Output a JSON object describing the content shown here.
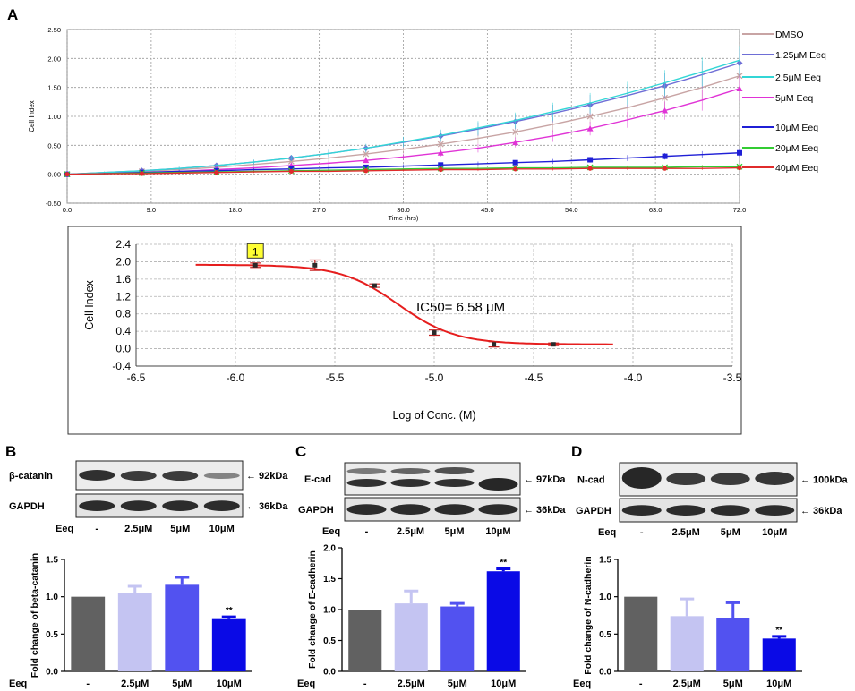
{
  "panels": {
    "a": {
      "letter": "A"
    },
    "b": {
      "letter": "B"
    },
    "c": {
      "letter": "C"
    },
    "d": {
      "letter": "D"
    }
  },
  "chart_data": [
    {
      "id": "realtime",
      "type": "line",
      "title": "",
      "xlabel": "Time (hrs)",
      "ylabel": "Cell Index",
      "xlim": [
        0,
        72
      ],
      "ylim": [
        -0.5,
        2.5
      ],
      "x_ticks": [
        "0.0",
        "9.0",
        "18.0",
        "27.0",
        "36.0",
        "45.0",
        "54.0",
        "63.0",
        "72.0"
      ],
      "y_ticks": [
        "2.50",
        "2.00",
        "1.50",
        "1.00",
        "0.50",
        "0.00",
        "-0.50"
      ],
      "x": [
        0,
        4,
        8,
        12,
        16,
        20,
        24,
        28,
        32,
        36,
        40,
        44,
        48,
        52,
        56,
        60,
        64,
        68,
        72
      ],
      "series": [
        {
          "name": "DMSO",
          "color": "#c8a4a4",
          "marker": "x",
          "values": [
            0,
            0.02,
            0.05,
            0.08,
            0.12,
            0.17,
            0.22,
            0.28,
            0.35,
            0.43,
            0.52,
            0.62,
            0.73,
            0.86,
            1.0,
            1.15,
            1.32,
            1.5,
            1.7
          ]
        },
        {
          "name": "1.25μM Eeq",
          "color": "#6e6ed6",
          "marker": "diamond",
          "values": [
            0,
            0.03,
            0.06,
            0.1,
            0.15,
            0.21,
            0.28,
            0.36,
            0.45,
            0.55,
            0.66,
            0.78,
            0.91,
            1.05,
            1.2,
            1.36,
            1.53,
            1.72,
            1.92
          ]
        },
        {
          "name": "2.5μM Eeq",
          "color": "#33d6d6",
          "marker": "none",
          "values": [
            0,
            0.03,
            0.06,
            0.1,
            0.15,
            0.21,
            0.28,
            0.36,
            0.45,
            0.56,
            0.67,
            0.8,
            0.93,
            1.08,
            1.23,
            1.4,
            1.58,
            1.77,
            1.97
          ]
        },
        {
          "name": "5μM Eeq",
          "color": "#e033d6",
          "marker": "triangle",
          "values": [
            0,
            0.01,
            0.03,
            0.05,
            0.08,
            0.11,
            0.15,
            0.19,
            0.24,
            0.3,
            0.37,
            0.45,
            0.55,
            0.66,
            0.79,
            0.94,
            1.1,
            1.28,
            1.48
          ]
        },
        {
          "name": "10μM Eeq",
          "color": "#1f1fd6",
          "marker": "square",
          "values": [
            0,
            0.01,
            0.03,
            0.05,
            0.06,
            0.08,
            0.09,
            0.11,
            0.12,
            0.14,
            0.16,
            0.18,
            0.2,
            0.22,
            0.25,
            0.28,
            0.31,
            0.34,
            0.37
          ]
        },
        {
          "name": "20μM Eeq",
          "color": "#33cc33",
          "marker": "x",
          "values": [
            0,
            0.01,
            0.02,
            0.03,
            0.04,
            0.05,
            0.06,
            0.07,
            0.08,
            0.09,
            0.1,
            0.1,
            0.11,
            0.11,
            0.12,
            0.12,
            0.12,
            0.13,
            0.13
          ]
        },
        {
          "name": "40μM Eeq",
          "color": "#e02b2b",
          "marker": "circle",
          "values": [
            0,
            0.01,
            0.01,
            0.02,
            0.03,
            0.04,
            0.05,
            0.05,
            0.06,
            0.07,
            0.08,
            0.08,
            0.09,
            0.09,
            0.1,
            0.1,
            0.1,
            0.1,
            0.11
          ]
        }
      ]
    },
    {
      "id": "ic50",
      "type": "line",
      "title": "",
      "xlabel": "Log of Conc. (M)",
      "ylabel": "Cell Index",
      "xlim": [
        -6.5,
        -3.5
      ],
      "ylim": [
        -0.4,
        2.4
      ],
      "x_ticks": [
        "-6.5",
        "-6.0",
        "-5.5",
        "-5.0",
        "-4.5",
        "-4.0",
        "-3.5"
      ],
      "y_ticks": [
        "2.4",
        "2.0",
        "1.6",
        "1.2",
        "0.8",
        "0.4",
        "0.0",
        "-0.4"
      ],
      "annotation": "IC50= 6.58 μM",
      "badge": "1",
      "points": [
        {
          "x": -5.9,
          "y": 1.92,
          "err": 0.05
        },
        {
          "x": -5.6,
          "y": 1.92,
          "err": 0.12
        },
        {
          "x": -5.3,
          "y": 1.45,
          "err": 0.04
        },
        {
          "x": -5.0,
          "y": 0.37,
          "err": 0.06
        },
        {
          "x": -4.7,
          "y": 0.1,
          "err": 0.06
        },
        {
          "x": -4.4,
          "y": 0.1,
          "err": 0.03
        }
      ],
      "fit": {
        "top": 1.93,
        "bottom": 0.1,
        "log_ic50": -5.18,
        "hill": 3.0,
        "x_from": -6.2,
        "x_to": -4.1
      }
    },
    {
      "id": "bcat",
      "type": "bar",
      "ylabel": "Fold change of beta-catanin",
      "categories": [
        "-",
        "2.5μM",
        "5μM",
        "10μM"
      ],
      "values": [
        1.0,
        1.05,
        1.16,
        0.7
      ],
      "errors": [
        0,
        0.09,
        0.1,
        0.03
      ],
      "significance": [
        "",
        "",
        "",
        "**"
      ],
      "colors": [
        "#616161",
        "#c4c4f2",
        "#5252f0",
        "#0a0ae6"
      ],
      "ylim": [
        0,
        1.5
      ],
      "y_ticks": [
        "0.0",
        "0.5",
        "1.0",
        "1.5"
      ],
      "xlabel": "Eeq"
    },
    {
      "id": "ecad",
      "type": "bar",
      "ylabel": "Fold change of E-cadherin",
      "categories": [
        "-",
        "2.5μM",
        "5μM",
        "10μM"
      ],
      "values": [
        1.0,
        1.1,
        1.05,
        1.62
      ],
      "errors": [
        0,
        0.2,
        0.05,
        0.04
      ],
      "significance": [
        "",
        "",
        "",
        "**"
      ],
      "colors": [
        "#616161",
        "#c4c4f2",
        "#5252f0",
        "#0a0ae6"
      ],
      "ylim": [
        0,
        2.0
      ],
      "y_ticks": [
        "0.0",
        "0.5",
        "1.0",
        "1.5",
        "2.0"
      ],
      "xlabel": "Eeq"
    },
    {
      "id": "ncad",
      "type": "bar",
      "ylabel": "Fold change of N-cadherin",
      "categories": [
        "-",
        "2.5μM",
        "5μM",
        "10μM"
      ],
      "values": [
        1.0,
        0.74,
        0.71,
        0.44
      ],
      "errors": [
        0,
        0.23,
        0.21,
        0.03
      ],
      "significance": [
        "",
        "",
        "",
        "**"
      ],
      "colors": [
        "#616161",
        "#c4c4f2",
        "#5252f0",
        "#0a0ae6"
      ],
      "ylim": [
        0,
        1.5
      ],
      "y_ticks": [
        "0.0",
        "0.5",
        "1.0",
        "1.5"
      ],
      "xlabel": "Eeq"
    }
  ],
  "blots": {
    "b": {
      "protein": "β-catanin",
      "protein_kda": "92kDa",
      "loading": "GAPDH",
      "loading_kda": "36kDa",
      "treatment": "Eeq",
      "lanes": [
        "-",
        "2.5μM",
        "5μM",
        "10μM"
      ]
    },
    "c": {
      "protein": "E-cad",
      "protein_kda": "97kDa",
      "loading": "GAPDH",
      "loading_kda": "36kDa",
      "treatment": "Eeq",
      "lanes": [
        "-",
        "2.5μM",
        "5μM",
        "10μM"
      ]
    },
    "d": {
      "protein": "N-cad",
      "protein_kda": "100kDa",
      "loading": "GAPDH",
      "loading_kda": "36kDa",
      "treatment": "Eeq",
      "lanes": [
        "-",
        "2.5μM",
        "5μM",
        "10μM"
      ]
    }
  },
  "arrow": "←"
}
